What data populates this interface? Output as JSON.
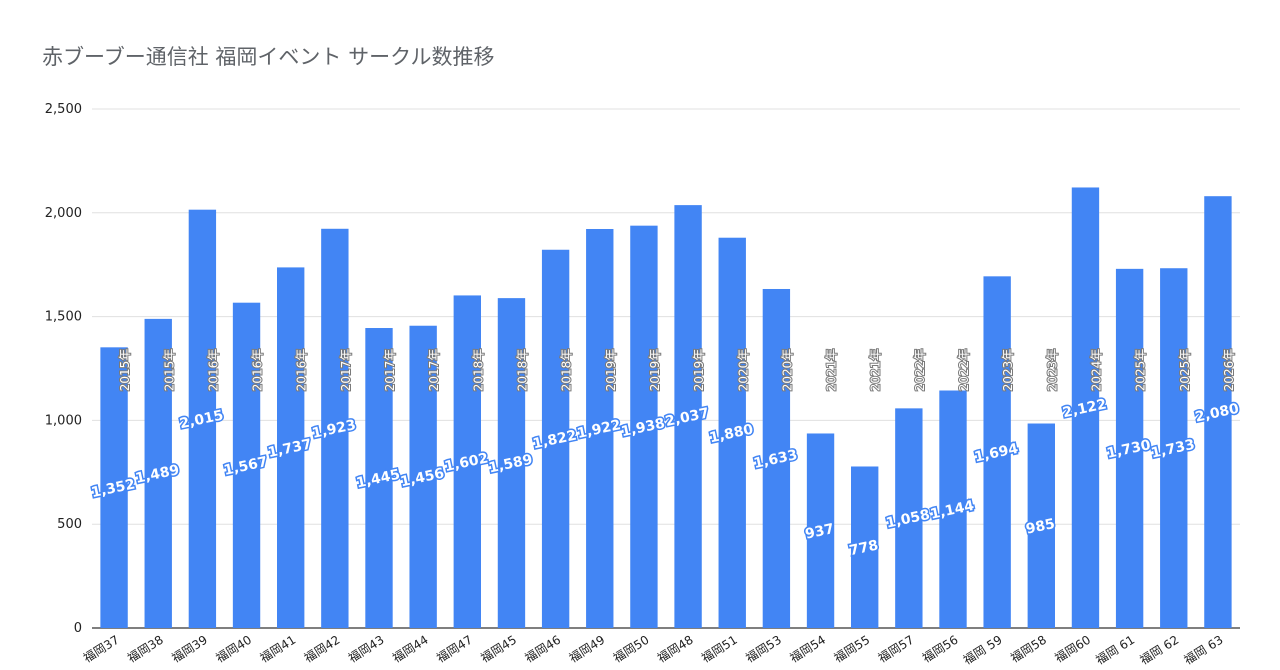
{
  "chart_data": {
    "type": "bar",
    "title": "赤ブーブー通信社 福岡イベント サークル数推移",
    "xlabel": "",
    "ylabel": "",
    "ylim": [
      0,
      2500
    ],
    "yticks": [
      0,
      500,
      1000,
      1500,
      2000,
      2500
    ],
    "ytick_labels": [
      "0",
      "500",
      "1,000",
      "1,500",
      "2,000",
      "2,500"
    ],
    "grid": true,
    "bar_color": "#4285f4",
    "categories": [
      "福岡37",
      "福岡38",
      "福岡39",
      "福岡40",
      "福岡41",
      "福岡42",
      "福岡43",
      "福岡44",
      "福岡47",
      "福岡45",
      "福岡46",
      "福岡49",
      "福岡50",
      "福岡48",
      "福岡51",
      "福岡53",
      "福岡54",
      "福岡55",
      "福岡57",
      "福岡56",
      "福岡 59",
      "福岡58",
      "福岡60",
      "福岡 61",
      "福岡 62",
      "福岡 63"
    ],
    "values": [
      1352,
      1489,
      2015,
      1567,
      1737,
      1923,
      1445,
      1456,
      1602,
      1589,
      1822,
      1922,
      1938,
      2037,
      1880,
      1633,
      937,
      778,
      1058,
      1144,
      1694,
      985,
      2122,
      1730,
      1733,
      2080
    ],
    "value_labels": [
      "1,352",
      "1,489",
      "2,015",
      "1,567",
      "1,737",
      "1,923",
      "1,445",
      "1,456",
      "1,602",
      "1,589",
      "1,822",
      "1,922",
      "1,938",
      "2,037",
      "1,880",
      "1,633",
      "937",
      "778",
      "1,058",
      "1,144",
      "1,694",
      "985",
      "2,122",
      "1,730",
      "1,733",
      "2,080"
    ],
    "annotations": [
      "2015年",
      "2015年",
      "2016年",
      "2016年",
      "2016年",
      "2017年",
      "2017年",
      "2017年",
      "2018年",
      "2018年",
      "2018年",
      "2019年",
      "2019年",
      "2019年",
      "2020年",
      "2020年",
      "2021年",
      "2021年",
      "2022年",
      "2022年",
      "2023年",
      "2023年",
      "2024年",
      "2025年",
      "2025年",
      "2026年"
    ]
  }
}
